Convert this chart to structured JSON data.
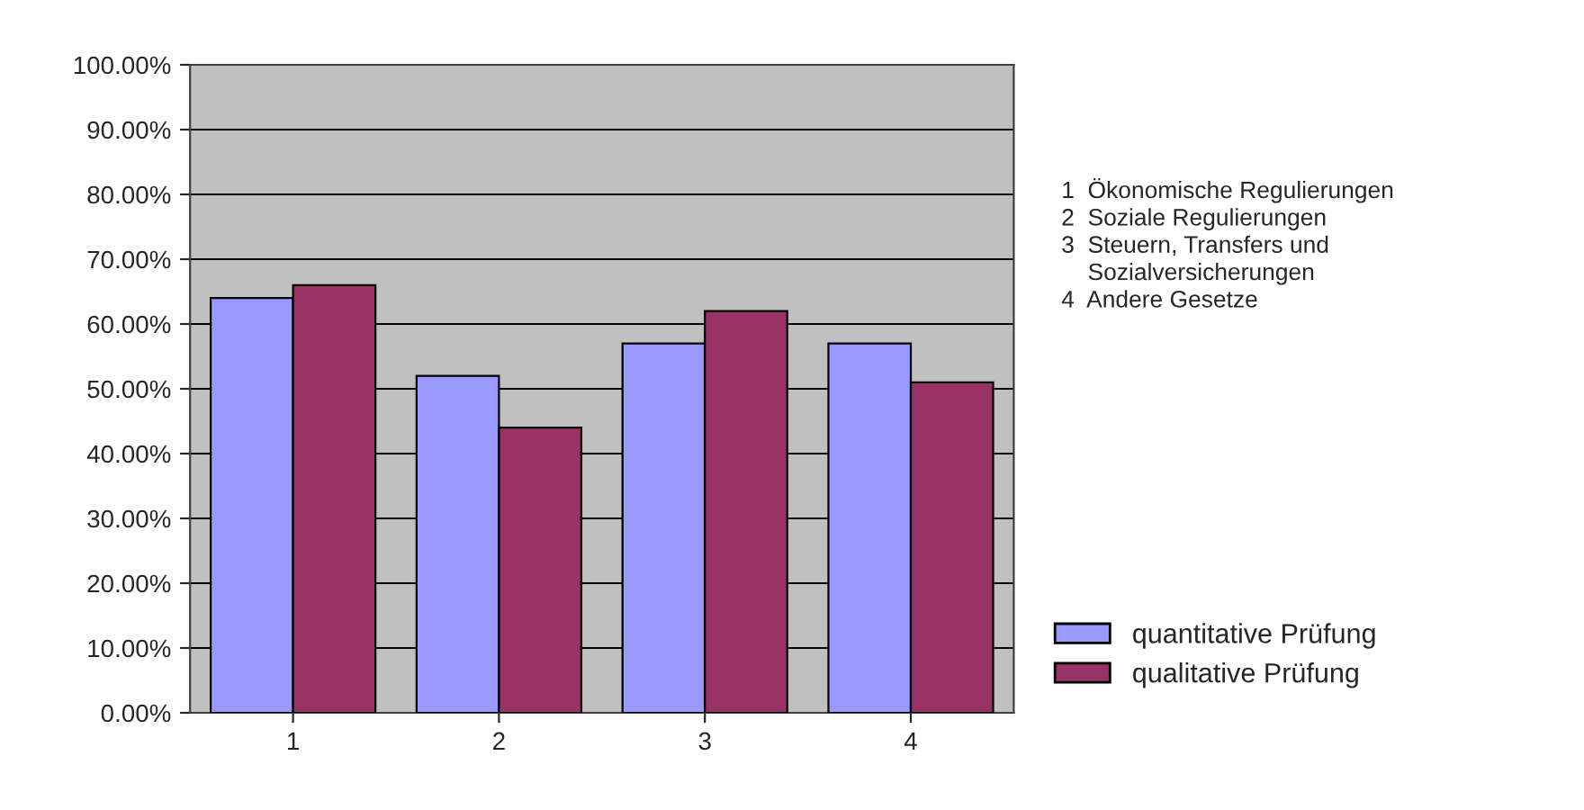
{
  "chart_data": {
    "type": "bar",
    "categories": [
      "1",
      "2",
      "3",
      "4"
    ],
    "series": [
      {
        "name": "quantitative Prüfung",
        "color": "#9999ff",
        "values": [
          64,
          52,
          57,
          57
        ]
      },
      {
        "name": "qualitative Prüfung",
        "color": "#993366",
        "values": [
          66,
          44,
          62,
          51
        ]
      }
    ],
    "ylim": [
      0,
      100
    ],
    "yticks": [
      {
        "value": 0,
        "label": "0.00%"
      },
      {
        "value": 10,
        "label": "10.00%"
      },
      {
        "value": 20,
        "label": "20.00%"
      },
      {
        "value": 30,
        "label": "30.00%"
      },
      {
        "value": 40,
        "label": "40.00%"
      },
      {
        "value": 50,
        "label": "50.00%"
      },
      {
        "value": 60,
        "label": "60.00%"
      },
      {
        "value": 70,
        "label": "70.00%"
      },
      {
        "value": 80,
        "label": "80.00%"
      },
      {
        "value": 90,
        "label": "90.00%"
      },
      {
        "value": 100,
        "label": "100.00%"
      }
    ],
    "grid": "y",
    "legend": "bottom right",
    "annotations": [
      "1  Ökonomische Regulierungen\n2  Soziale Regulierungen\n3  Steuern, Transfers und\n    Sozialversicherungen\n4  Andere Gesetze"
    ]
  }
}
